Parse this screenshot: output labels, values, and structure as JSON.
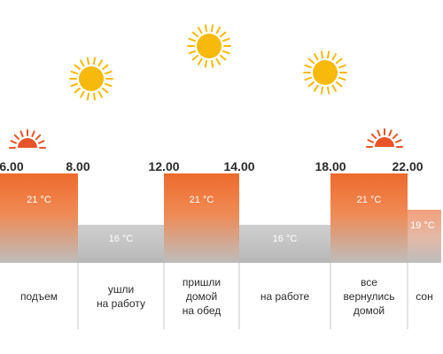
{
  "colors": {
    "warm": "#ee6a2c",
    "cool": "#b8b8b8",
    "sun": "#f7b90b",
    "sunrise": "#e8542a",
    "divider": "#c8c8c8",
    "text": "#2b2b2b"
  },
  "time_labels": [
    "6.00",
    "8.00",
    "12.00",
    "14.00",
    "18.00",
    "22.00"
  ],
  "chart_data": {
    "type": "step-area",
    "x": [
      6,
      8,
      12,
      14,
      18,
      22,
      24
    ],
    "segments": [
      {
        "from": 6,
        "to": 8,
        "temp": 21,
        "label": "21 °C"
      },
      {
        "from": 8,
        "to": 12,
        "temp": 16,
        "label": "16 °C"
      },
      {
        "from": 12,
        "to": 14,
        "temp": 21,
        "label": "21 °C"
      },
      {
        "from": 14,
        "to": 18,
        "temp": 16,
        "label": "16 °C"
      },
      {
        "from": 18,
        "to": 22,
        "temp": 21,
        "label": "21 °C"
      },
      {
        "from": 22,
        "to": 24,
        "temp": 19,
        "label": "19 °C"
      }
    ],
    "ylim": [
      0,
      21
    ]
  },
  "phases": [
    {
      "label": "подъем"
    },
    {
      "label": "ушли\nна работу"
    },
    {
      "label": "пришли\nдомой\nна обед"
    },
    {
      "label": "на работе"
    },
    {
      "label": "все\nвернулись\nдомой"
    },
    {
      "label": "сон"
    }
  ],
  "icons": [
    "sunrise-icon",
    "sun-icon",
    "sun-icon",
    "sun-icon",
    "sunset-icon"
  ]
}
